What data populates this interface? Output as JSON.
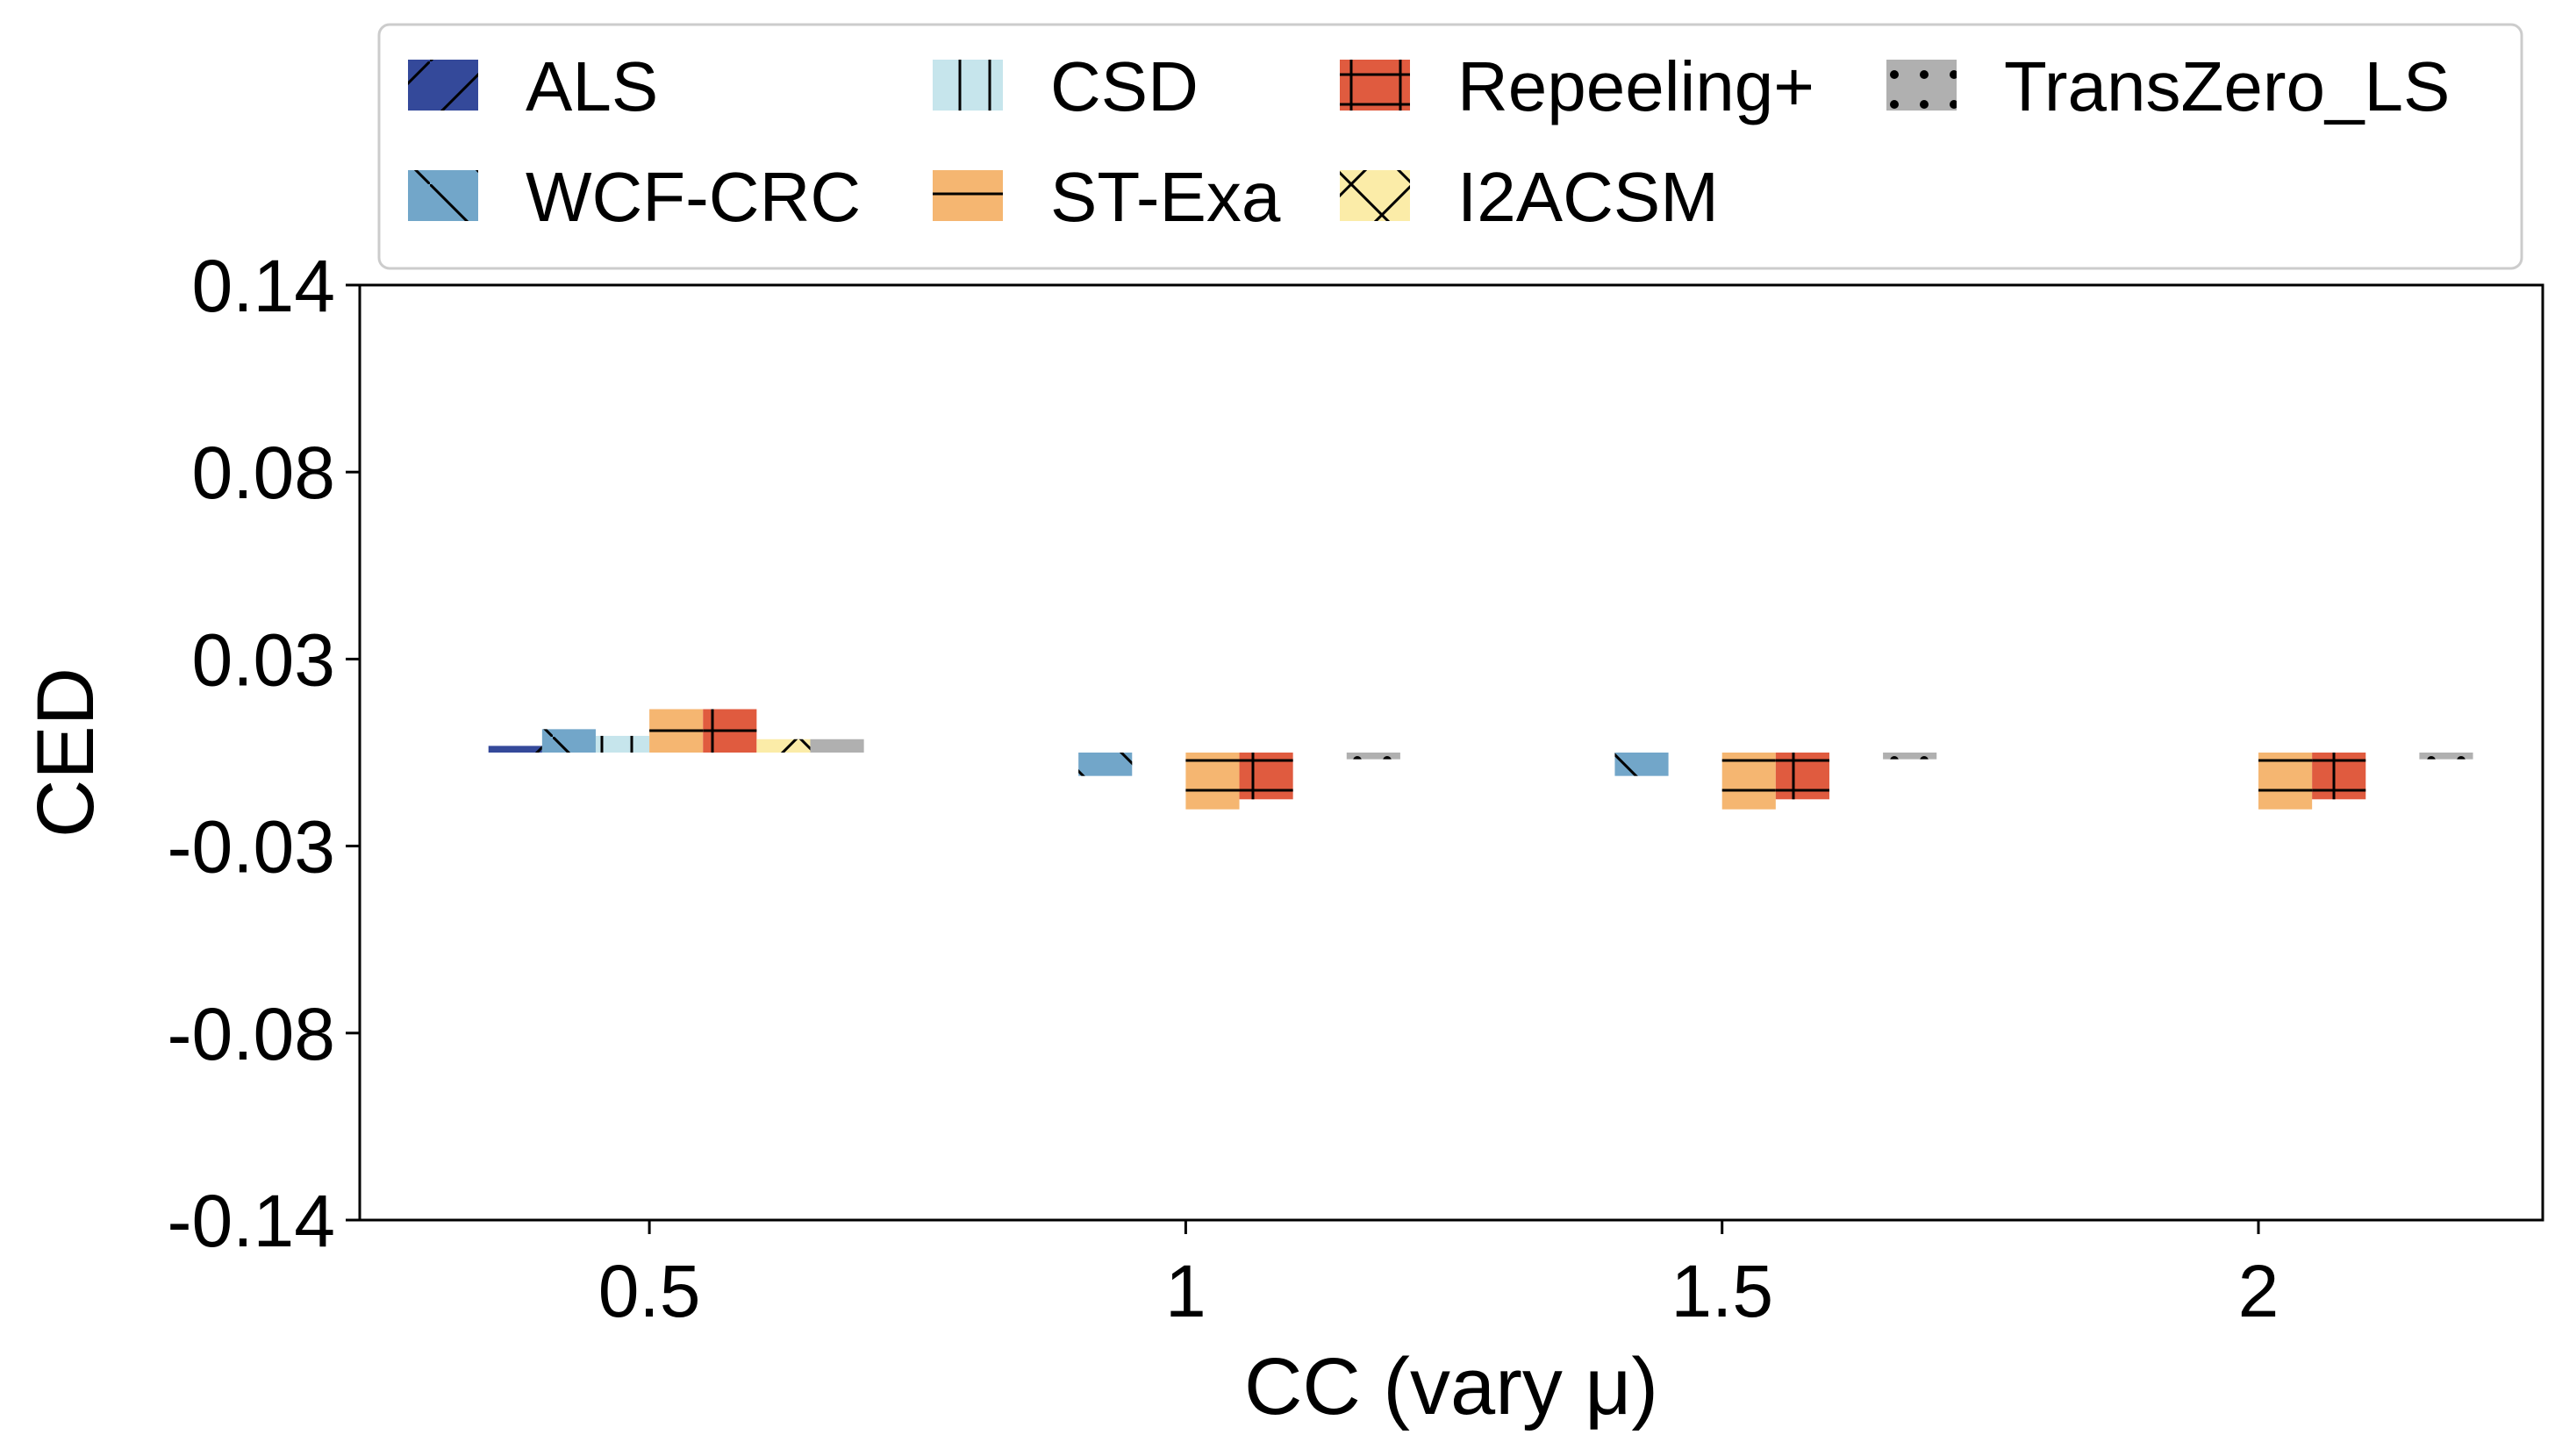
{
  "chart_data": {
    "type": "bar",
    "xlabel": "CC (vary μ)",
    "ylabel": "CED",
    "categories": [
      "0.5",
      "1",
      "1.5",
      "2"
    ],
    "y_ticks": [
      "0.14",
      "0.08",
      "0.03",
      "-0.03",
      "-0.08",
      "-0.14"
    ],
    "ylim": [
      -0.14,
      0.14
    ],
    "x_tick_values": [
      0.5,
      1,
      1.5,
      2
    ],
    "grid": false,
    "legend_position": "top",
    "series": [
      {
        "name": "ALS",
        "color": "#34499a",
        "hatch": "forward-slash",
        "values": [
          0.002,
          null,
          null,
          null
        ]
      },
      {
        "name": "WCF-CRC",
        "color": "#72a6c9",
        "hatch": "back-slash",
        "values": [
          0.007,
          -0.007,
          -0.007,
          null
        ]
      },
      {
        "name": "CSD",
        "color": "#c6e5ec",
        "hatch": "vertical",
        "values": [
          0.005,
          null,
          null,
          null
        ]
      },
      {
        "name": "ST-Exa",
        "color": "#f5b671",
        "hatch": "horizontal",
        "values": [
          0.013,
          -0.017,
          -0.017,
          -0.017
        ]
      },
      {
        "name": "Repeeling+",
        "color": "#e05b3f",
        "hatch": "plus",
        "values": [
          0.013,
          -0.014,
          -0.014,
          -0.014
        ]
      },
      {
        "name": "I2ACSM",
        "color": "#fbeca8",
        "hatch": "cross",
        "values": [
          0.004,
          null,
          null,
          null
        ]
      },
      {
        "name": "TransZero_LS",
        "color": "#b0b0b0",
        "hatch": "dots",
        "values": [
          0.004,
          -0.002,
          -0.002,
          -0.002
        ]
      }
    ]
  }
}
